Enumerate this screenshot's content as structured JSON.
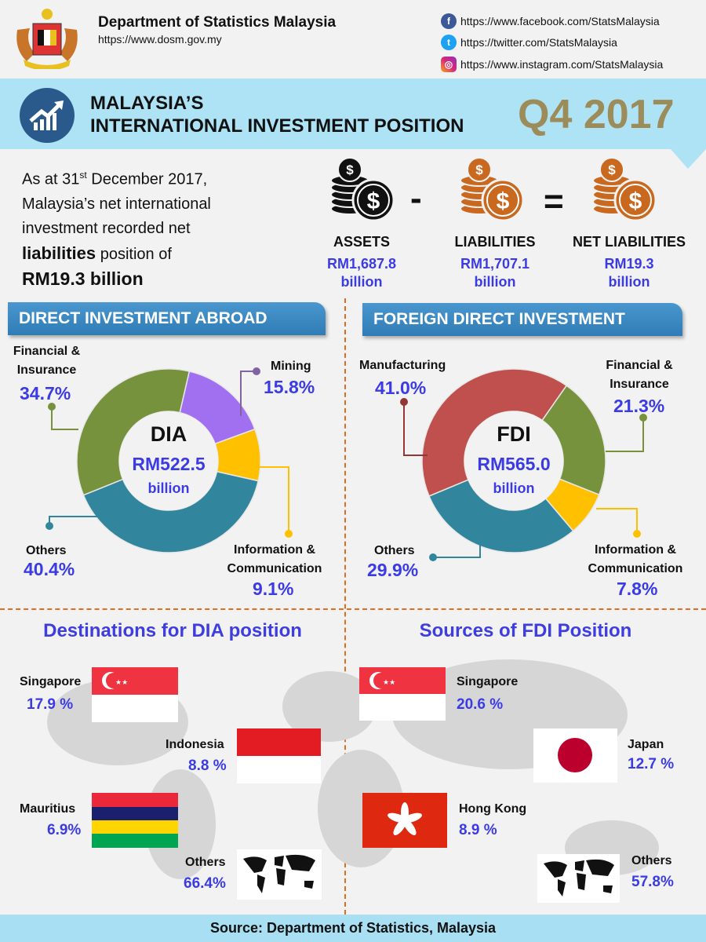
{
  "header": {
    "org": "Department of Statistics Malaysia",
    "website": "https://www.dosm.gov.my",
    "social": [
      {
        "icon": "facebook-icon",
        "url": "https://www.facebook.com/StatsMalaysia"
      },
      {
        "icon": "twitter-icon",
        "url": "https://twitter.com/StatsMalaysia"
      },
      {
        "icon": "instagram-icon",
        "url": "https://www.instagram.com/StatsMalaysia"
      }
    ]
  },
  "banner": {
    "title_line1": "MALAYSIA’S",
    "title_line2": "INTERNATIONAL INVESTMENT POSITION",
    "period": "Q4 2017"
  },
  "intro": {
    "line1_pre": "As at 31",
    "line1_sup": "st",
    "line1_post": " December 2017,",
    "line2": "Malaysia’s net international",
    "line3": "investment recorded net",
    "line4_bold": "liabilities",
    "line4_rest": " position of",
    "line5": "RM19.3 billion"
  },
  "equation": {
    "minus": "-",
    "equals": "=",
    "items": [
      {
        "label": "ASSETS",
        "value": "RM1,687.8",
        "unit": "billion",
        "color": "#111111"
      },
      {
        "label": "LIABILITIES",
        "value": "RM1,707.1",
        "unit": "billion",
        "color": "#c9681f"
      },
      {
        "label": "NET LIABILITIES",
        "value": "RM19.3",
        "unit": "billion",
        "color": "#c9681f"
      }
    ]
  },
  "sections": {
    "dia": "DIRECT INVESTMENT ABROAD",
    "fdi": "FOREIGN DIRECT INVESTMENT"
  },
  "chart_data": [
    {
      "type": "pie",
      "donut": true,
      "center_title": "DIA",
      "center_value": "RM522.5",
      "center_unit": "billion",
      "categories": [
        "Mining",
        "Information & Communication",
        "Others",
        "Financial & Insurance"
      ],
      "values": [
        15.8,
        9.1,
        40.4,
        34.7
      ],
      "labels": [
        "15.8%",
        "9.1%",
        "40.4%",
        "34.7%"
      ],
      "colors": [
        "#a070f0",
        "#ffc000",
        "#31859c",
        "#76923c"
      ]
    },
    {
      "type": "pie",
      "donut": true,
      "center_title": "FDI",
      "center_value": "RM565.0",
      "center_unit": "billion",
      "categories": [
        "Financial & Insurance",
        "Information & Communication",
        "Others",
        "Manufacturing"
      ],
      "values": [
        21.3,
        7.8,
        29.9,
        41.0
      ],
      "labels": [
        "21.3%",
        "7.8%",
        "29.9%",
        "41.0%"
      ],
      "colors": [
        "#76923c",
        "#ffc000",
        "#31859c",
        "#c0504d"
      ]
    }
  ],
  "dia_labels": {
    "fin1": "Financial &",
    "fin2": "Insurance",
    "mining": "Mining",
    "others": "Others",
    "ict1": "Information &",
    "ict2": "Communication"
  },
  "fdi_labels": {
    "mfg": "Manufacturing",
    "fin1": "Financial &",
    "fin2": "Insurance",
    "others": "Others",
    "ict1": "Information &",
    "ict2": "Communication"
  },
  "destinations": {
    "title": "Destinations for DIA position",
    "items": [
      {
        "country": "Singapore",
        "share": "17.9 %"
      },
      {
        "country": "Indonesia",
        "share": "8.8 %"
      },
      {
        "country": "Mauritius",
        "share": "6.9%"
      },
      {
        "country": "Others",
        "share": "66.4%"
      }
    ]
  },
  "sources": {
    "title": "Sources of FDI Position",
    "items": [
      {
        "country": "Singapore",
        "share": "20.6 %"
      },
      {
        "country": "Japan",
        "share": "12.7 %"
      },
      {
        "country": "Hong Kong",
        "share": "8.9 %"
      },
      {
        "country": "Others",
        "share": "57.8%"
      }
    ]
  },
  "footer": {
    "source": "Source: Department of Statistics, Malaysia"
  }
}
